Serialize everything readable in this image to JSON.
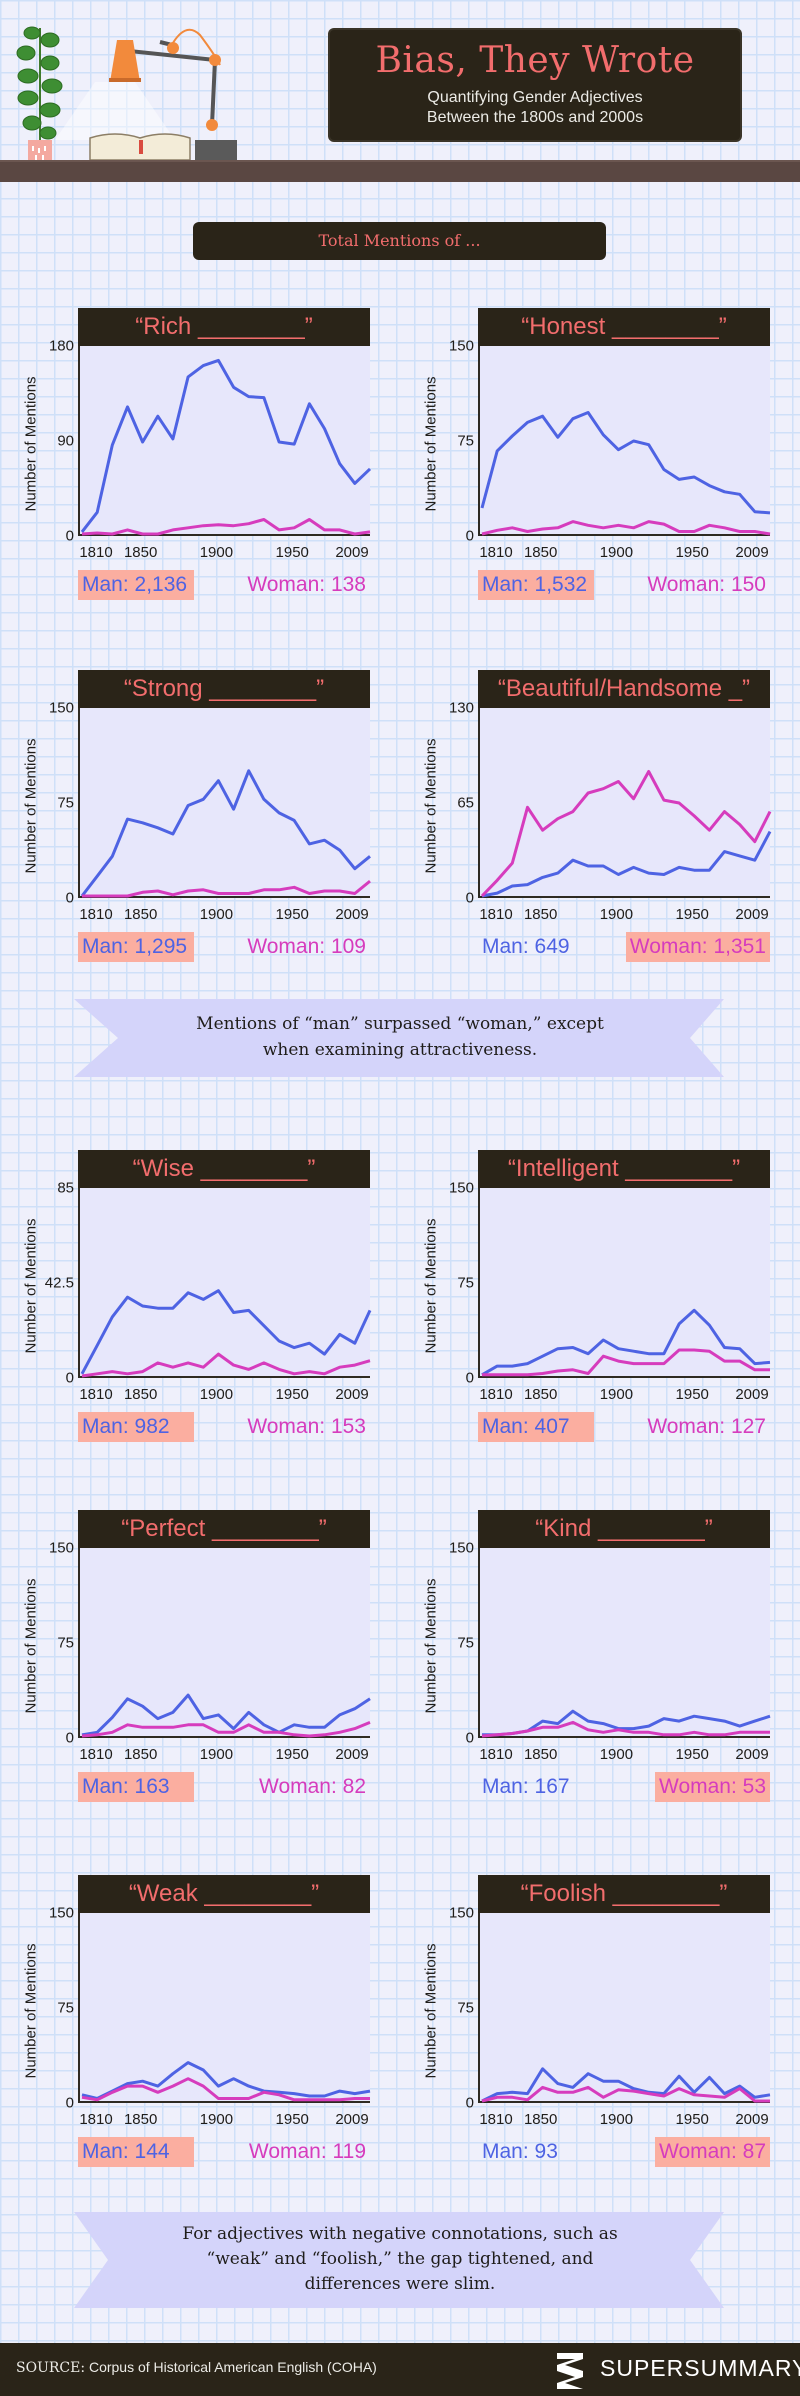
{
  "header": {
    "title": "Bias, They Wrote",
    "subtitle_line1": "Quantifying Gender Adjectives",
    "subtitle_line2": "Between the 1800s and 2000s"
  },
  "section_title": "Total Mentions of ...",
  "colors": {
    "man": "#4e63e3",
    "woman": "#d63cbd",
    "highlight": "#fbaea0",
    "board": "#2a2418",
    "title_text": "#f26d6d",
    "plot_bg": "#e7e7fb",
    "ribbon": "#d4d4fa"
  },
  "ribbons": {
    "first": {
      "line1": "Mentions of “man” surpassed “woman,” except",
      "line2": "when examining attractiveness."
    },
    "second": {
      "line1": "For adjectives with negative connotations, such as",
      "line2": "“weak” and “foolish,” the gap tightened, and",
      "line3": "differences were slim."
    }
  },
  "footer": {
    "source_label": "SOURCE:",
    "source_text": "Corpus of Historical American English (COHA)",
    "brand": "SuperSummary",
    "trademark": "TM"
  },
  "chart_data": [
    {
      "type": "line",
      "title": "“Rich ________”",
      "xlabel": "",
      "ylabel": "Number of Mentions",
      "ylim": [
        0,
        180
      ],
      "yticks": [
        "0",
        "90",
        "180"
      ],
      "xticks": [
        "1810",
        "1850",
        "1900",
        "1950",
        "2009"
      ],
      "x": [
        1810,
        1820,
        1830,
        1840,
        1850,
        1860,
        1870,
        1880,
        1890,
        1900,
        1910,
        1920,
        1930,
        1940,
        1950,
        1960,
        1970,
        1980,
        1990,
        2000
      ],
      "series": [
        {
          "name": "Man",
          "values": [
            2,
            21,
            86,
            123,
            89,
            114,
            92,
            152,
            163,
            168,
            142,
            133,
            132,
            89,
            87,
            126,
            102,
            68,
            49,
            63
          ]
        },
        {
          "name": "Woman",
          "values": [
            0,
            1,
            0,
            4,
            0,
            0,
            4,
            6,
            8,
            9,
            8,
            10,
            14,
            4,
            6,
            14,
            4,
            4,
            0,
            2
          ]
        }
      ],
      "totals": {
        "man_label": "Man: 2,136",
        "woman_label": "Woman: 138",
        "highlight": "man"
      }
    },
    {
      "type": "line",
      "title": "“Honest ________”",
      "xlabel": "",
      "ylabel": "Number of Mentions",
      "ylim": [
        0,
        150
      ],
      "yticks": [
        "0",
        "75",
        "150"
      ],
      "xticks": [
        "1810",
        "1850",
        "1900",
        "1950",
        "2009"
      ],
      "x": [
        1810,
        1820,
        1830,
        1840,
        1850,
        1860,
        1870,
        1880,
        1890,
        1900,
        1910,
        1920,
        1930,
        1940,
        1950,
        1960,
        1970,
        1980,
        1990,
        2000
      ],
      "series": [
        {
          "name": "Man",
          "values": [
            21,
            67,
            79,
            90,
            95,
            78,
            93,
            98,
            80,
            68,
            75,
            72,
            52,
            44,
            46,
            39,
            34,
            32,
            18,
            17
          ]
        },
        {
          "name": "Woman",
          "values": [
            0,
            3,
            5,
            2,
            4,
            5,
            10,
            7,
            5,
            7,
            5,
            10,
            8,
            2,
            2,
            7,
            5,
            2,
            2,
            0
          ]
        }
      ],
      "totals": {
        "man_label": "Man: 1,532",
        "woman_label": "Woman: 150",
        "highlight": "man"
      }
    },
    {
      "type": "line",
      "title": "“Strong ________”",
      "xlabel": "",
      "ylabel": "Number of Mentions",
      "ylim": [
        0,
        150
      ],
      "yticks": [
        "0",
        "75",
        "150"
      ],
      "xticks": [
        "1810",
        "1850",
        "1900",
        "1950",
        "2009"
      ],
      "x": [
        1810,
        1820,
        1830,
        1840,
        1850,
        1860,
        1870,
        1880,
        1890,
        1900,
        1910,
        1920,
        1930,
        1940,
        1950,
        1960,
        1970,
        1980,
        1990,
        2000
      ],
      "series": [
        {
          "name": "Man",
          "values": [
            0,
            16,
            32,
            62,
            59,
            55,
            50,
            73,
            78,
            93,
            70,
            101,
            78,
            67,
            61,
            42,
            45,
            37,
            22,
            32
          ]
        },
        {
          "name": "Woman",
          "values": [
            0,
            0,
            0,
            0,
            3,
            4,
            1,
            4,
            5,
            2,
            2,
            2,
            5,
            5,
            7,
            2,
            4,
            4,
            2,
            12
          ]
        }
      ],
      "totals": {
        "man_label": "Man: 1,295",
        "woman_label": "Woman: 109",
        "highlight": "man"
      }
    },
    {
      "type": "line",
      "title": "“Beautiful/Handsome _”",
      "xlabel": "",
      "ylabel": "Number of Mentions",
      "ylim": [
        0,
        130
      ],
      "yticks": [
        "0",
        "65",
        "130"
      ],
      "xticks": [
        "1810",
        "1850",
        "1900",
        "1950",
        "2009"
      ],
      "x": [
        1810,
        1820,
        1830,
        1840,
        1850,
        1860,
        1870,
        1880,
        1890,
        1900,
        1910,
        1920,
        1930,
        1940,
        1950,
        1960,
        1970,
        1980,
        1990,
        2000
      ],
      "series": [
        {
          "name": "Man",
          "values": [
            0,
            2,
            7,
            8,
            13,
            16,
            25,
            21,
            21,
            15,
            20,
            16,
            15,
            20,
            18,
            18,
            31,
            28,
            25,
            45
          ]
        },
        {
          "name": "Woman",
          "values": [
            0,
            11,
            23,
            62,
            46,
            54,
            59,
            72,
            75,
            80,
            68,
            87,
            67,
            65,
            56,
            46,
            59,
            50,
            38,
            59
          ]
        }
      ],
      "totals": {
        "man_label": "Man: 649",
        "woman_label": "Woman: 1,351",
        "highlight": "woman"
      }
    },
    {
      "type": "line",
      "title": "“Wise ________”",
      "xlabel": "",
      "ylabel": "Number of Mentions",
      "ylim": [
        0,
        85
      ],
      "yticks": [
        "0",
        "42.5",
        "85"
      ],
      "xticks": [
        "1810",
        "1850",
        "1900",
        "1950",
        "2009"
      ],
      "x": [
        1810,
        1820,
        1830,
        1840,
        1850,
        1860,
        1870,
        1880,
        1890,
        1900,
        1910,
        1920,
        1930,
        1940,
        1950,
        1960,
        1970,
        1980,
        1990,
        2000
      ],
      "series": [
        {
          "name": "Man",
          "values": [
            1,
            14,
            27,
            36,
            32,
            31,
            31,
            38,
            35,
            39,
            29,
            30,
            23,
            16,
            13,
            15,
            10,
            19,
            15,
            30
          ]
        },
        {
          "name": "Woman",
          "values": [
            0,
            1,
            2,
            1,
            2,
            6,
            4,
            6,
            4,
            10,
            5,
            3,
            6,
            3,
            1,
            2,
            1,
            4,
            5,
            7
          ]
        }
      ],
      "totals": {
        "man_label": "Man: 982",
        "woman_label": "Woman: 153",
        "highlight": "man"
      }
    },
    {
      "type": "line",
      "title": "“Intelligent ________”",
      "xlabel": "",
      "ylabel": "Number of Mentions",
      "ylim": [
        0,
        150
      ],
      "yticks": [
        "0",
        "75",
        "150"
      ],
      "xticks": [
        "1810",
        "1850",
        "1900",
        "1950",
        "2009"
      ],
      "x": [
        1810,
        1820,
        1830,
        1840,
        1850,
        1860,
        1870,
        1880,
        1890,
        1900,
        1910,
        1920,
        1930,
        1940,
        1950,
        1960,
        1970,
        1980,
        1990,
        2000
      ],
      "series": [
        {
          "name": "Man",
          "values": [
            1,
            8,
            8,
            10,
            16,
            22,
            23,
            18,
            29,
            22,
            20,
            18,
            18,
            42,
            53,
            41,
            23,
            22,
            10,
            11
          ]
        },
        {
          "name": "Woman",
          "values": [
            1,
            1,
            1,
            1,
            2,
            4,
            5,
            2,
            16,
            12,
            10,
            10,
            10,
            21,
            21,
            20,
            12,
            12,
            5,
            5
          ]
        }
      ],
      "totals": {
        "man_label": "Man: 407",
        "woman_label": "Woman: 127",
        "highlight": "man"
      }
    },
    {
      "type": "line",
      "title": "“Perfect ________”",
      "xlabel": "",
      "ylabel": "Number of Mentions",
      "ylim": [
        0,
        150
      ],
      "yticks": [
        "0",
        "75",
        "150"
      ],
      "xticks": [
        "1810",
        "1850",
        "1900",
        "1950",
        "2009"
      ],
      "x": [
        1810,
        1820,
        1830,
        1840,
        1850,
        1860,
        1870,
        1880,
        1890,
        1900,
        1910,
        1920,
        1930,
        1940,
        1950,
        1960,
        1970,
        1980,
        1990,
        2000
      ],
      "series": [
        {
          "name": "Man",
          "values": [
            1,
            3,
            15,
            30,
            24,
            14,
            19,
            33,
            14,
            17,
            6,
            19,
            9,
            3,
            9,
            7,
            7,
            17,
            22,
            30
          ]
        },
        {
          "name": "Woman",
          "values": [
            0,
            1,
            3,
            9,
            7,
            7,
            7,
            9,
            9,
            3,
            3,
            9,
            3,
            3,
            1,
            0,
            1,
            3,
            6,
            11
          ]
        }
      ],
      "totals": {
        "man_label": "Man: 163",
        "woman_label": "Woman: 82",
        "highlight": "man"
      }
    },
    {
      "type": "line",
      "title": "“Kind ________”",
      "xlabel": "",
      "ylabel": "Number of Mentions",
      "ylim": [
        0,
        150
      ],
      "yticks": [
        "0",
        "75",
        "150"
      ],
      "xticks": [
        "1810",
        "1850",
        "1900",
        "1950",
        "2009"
      ],
      "x": [
        1810,
        1820,
        1830,
        1840,
        1850,
        1860,
        1870,
        1880,
        1890,
        1900,
        1910,
        1920,
        1930,
        1940,
        1950,
        1960,
        1970,
        1980,
        1990,
        2000
      ],
      "series": [
        {
          "name": "Man",
          "values": [
            1,
            1,
            2,
            4,
            12,
            10,
            20,
            12,
            10,
            6,
            6,
            8,
            14,
            12,
            16,
            14,
            12,
            8,
            12,
            16
          ]
        },
        {
          "name": "Woman",
          "values": [
            0,
            1,
            2,
            4,
            7,
            7,
            11,
            5,
            3,
            5,
            3,
            3,
            1,
            1,
            3,
            1,
            1,
            3,
            3,
            3
          ]
        }
      ],
      "totals": {
        "man_label": "Man: 167",
        "woman_label": "Woman: 53",
        "highlight": "woman"
      }
    },
    {
      "type": "line",
      "title": "“Weak ________”",
      "xlabel": "",
      "ylabel": "Number of Mentions",
      "ylim": [
        0,
        150
      ],
      "yticks": [
        "0",
        "75",
        "150"
      ],
      "xticks": [
        "1810",
        "1850",
        "1900",
        "1950",
        "2009"
      ],
      "x": [
        1810,
        1820,
        1830,
        1840,
        1850,
        1860,
        1870,
        1880,
        1890,
        1900,
        1910,
        1920,
        1930,
        1940,
        1950,
        1960,
        1970,
        1980,
        1990,
        2000
      ],
      "series": [
        {
          "name": "Man",
          "values": [
            5,
            2,
            8,
            14,
            16,
            12,
            22,
            31,
            25,
            12,
            18,
            12,
            8,
            7,
            6,
            4,
            4,
            8,
            6,
            8
          ]
        },
        {
          "name": "Woman",
          "values": [
            3,
            1,
            7,
            12,
            12,
            7,
            12,
            18,
            12,
            2,
            2,
            2,
            7,
            5,
            1,
            1,
            1,
            1,
            2,
            2
          ]
        }
      ],
      "totals": {
        "man_label": "Man: 144",
        "woman_label": "Woman: 119",
        "highlight": "man"
      }
    },
    {
      "type": "line",
      "title": "“Foolish ________”",
      "xlabel": "",
      "ylabel": "Number of Mentions",
      "ylim": [
        0,
        150
      ],
      "yticks": [
        "0",
        "75",
        "150"
      ],
      "xticks": [
        "1810",
        "1850",
        "1900",
        "1950",
        "2009"
      ],
      "x": [
        1810,
        1820,
        1830,
        1840,
        1850,
        1860,
        1870,
        1880,
        1890,
        1900,
        1910,
        1920,
        1930,
        1940,
        1950,
        1960,
        1970,
        1980,
        1990,
        2000
      ],
      "series": [
        {
          "name": "Man",
          "values": [
            0,
            6,
            7,
            6,
            26,
            14,
            11,
            22,
            16,
            16,
            10,
            7,
            6,
            20,
            7,
            19,
            6,
            12,
            3,
            5
          ]
        },
        {
          "name": "Woman",
          "values": [
            0,
            3,
            3,
            1,
            11,
            7,
            7,
            11,
            3,
            9,
            8,
            6,
            4,
            10,
            5,
            4,
            3,
            10,
            0,
            0
          ]
        }
      ],
      "totals": {
        "man_label": "Man: 93",
        "woman_label": "Woman: 87",
        "highlight": "woman"
      }
    }
  ]
}
